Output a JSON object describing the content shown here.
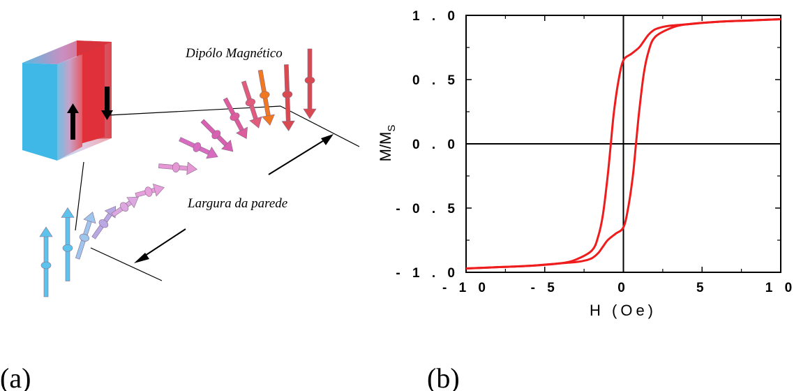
{
  "panels": {
    "a_label": "(a)",
    "b_label": "(b)"
  },
  "diagram": {
    "dipole_label": "Dipólo Magnético",
    "wall_width_label": "Largura da parede",
    "colors": {
      "domain_left": "#3fb8e8",
      "domain_right": "#e0303a",
      "wall_arrow_left": "#5cc4ec",
      "wall_arrow_right": "#d94a50"
    }
  },
  "chart_data": {
    "type": "line",
    "title": "",
    "xlabel": "H (Oe)",
    "ylabel": "M/M",
    "ylabel_sub": "S",
    "xlim": [
      -10,
      10
    ],
    "ylim": [
      -1.0,
      1.0
    ],
    "x_ticks": [
      -10,
      -5,
      0,
      5,
      10
    ],
    "x_tick_labels": [
      "- 1 0",
      "- 5",
      "0",
      "5",
      "1 0"
    ],
    "y_ticks": [
      -1.0,
      -0.5,
      0.0,
      0.5,
      1.0
    ],
    "y_tick_labels": [
      "- 1 . 0",
      "- 0 . 5",
      "0 . 0",
      "0 . 5",
      "1 . 0"
    ],
    "zero_lines": true,
    "line_color": "#ee1c1c",
    "series": [
      {
        "x": [
          10,
          8,
          6,
          4,
          3,
          2.5,
          2,
          1.6,
          1.3,
          1,
          0.5,
          0,
          -0.3,
          -0.6,
          -0.8,
          -1,
          -1.3,
          -1.6,
          -2,
          -3,
          -4,
          -6,
          -8,
          -10
        ],
        "y": [
          0.97,
          0.96,
          0.95,
          0.93,
          0.92,
          0.91,
          0.89,
          0.85,
          0.8,
          0.75,
          0.7,
          0.65,
          0.5,
          0.25,
          0.0,
          -0.25,
          -0.55,
          -0.72,
          -0.83,
          -0.9,
          -0.93,
          -0.95,
          -0.96,
          -0.97
        ]
      },
      {
        "x": [
          -10,
          -8,
          -6,
          -4,
          -3,
          -2.5,
          -2,
          -1.6,
          -1.3,
          -1,
          -0.5,
          0,
          0.3,
          0.6,
          0.8,
          1,
          1.3,
          1.6,
          2,
          3,
          4,
          6,
          8,
          10
        ],
        "y": [
          -0.97,
          -0.96,
          -0.95,
          -0.93,
          -0.92,
          -0.91,
          -0.89,
          -0.85,
          -0.8,
          -0.75,
          -0.7,
          -0.65,
          -0.5,
          -0.25,
          0.0,
          0.25,
          0.55,
          0.72,
          0.83,
          0.9,
          0.93,
          0.95,
          0.96,
          0.97
        ]
      }
    ]
  }
}
